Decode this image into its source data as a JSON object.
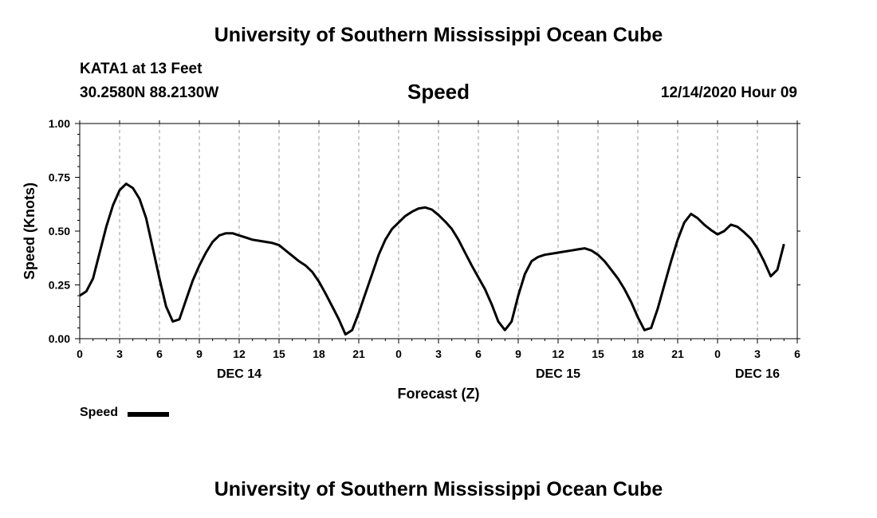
{
  "header": {
    "title_top": "University of Southern Mississippi Ocean Cube",
    "station": "KATA1 at 13 Feet",
    "coords": "30.2580N 88.2130W",
    "variable": "Speed",
    "datetime": "12/14/2020 Hour 09",
    "title_bottom": "University of Southern Mississippi Ocean Cube"
  },
  "legend": {
    "label": "Speed",
    "color": "#000000"
  },
  "chart_data": {
    "type": "line",
    "title": "Speed",
    "xlabel": "Forecast (Z)",
    "ylabel": "Speed (Knots)",
    "x_unit": "hours from 12/14 00Z",
    "xlim": [
      0,
      54
    ],
    "ylim": [
      0,
      1.0
    ],
    "y_ticks": [
      "0.00",
      "0.25",
      "0.50",
      "0.75",
      "1.00"
    ],
    "x_tick_labels": [
      "0",
      "3",
      "6",
      "9",
      "12",
      "15",
      "18",
      "21",
      "0",
      "3",
      "6",
      "9",
      "12",
      "15",
      "18",
      "21",
      "0",
      "3",
      "6"
    ],
    "date_labels": [
      {
        "at_hour": 12,
        "label": "DEC 14"
      },
      {
        "at_hour": 36,
        "label": "DEC 15"
      },
      {
        "at_hour": 51,
        "label": "DEC 16"
      }
    ],
    "series": [
      {
        "name": "Speed",
        "color": "#000000",
        "points": [
          [
            0,
            0.2
          ],
          [
            0.5,
            0.22
          ],
          [
            1,
            0.28
          ],
          [
            1.5,
            0.4
          ],
          [
            2,
            0.52
          ],
          [
            2.5,
            0.62
          ],
          [
            3,
            0.69
          ],
          [
            3.5,
            0.72
          ],
          [
            4,
            0.7
          ],
          [
            4.5,
            0.65
          ],
          [
            5,
            0.56
          ],
          [
            5.5,
            0.42
          ],
          [
            6,
            0.28
          ],
          [
            6.5,
            0.15
          ],
          [
            7,
            0.08
          ],
          [
            7.5,
            0.09
          ],
          [
            8,
            0.18
          ],
          [
            8.5,
            0.27
          ],
          [
            9,
            0.34
          ],
          [
            9.5,
            0.4
          ],
          [
            10,
            0.45
          ],
          [
            10.5,
            0.48
          ],
          [
            11,
            0.49
          ],
          [
            11.5,
            0.49
          ],
          [
            12,
            0.48
          ],
          [
            12.5,
            0.47
          ],
          [
            13,
            0.46
          ],
          [
            13.5,
            0.455
          ],
          [
            14,
            0.45
          ],
          [
            14.5,
            0.445
          ],
          [
            15,
            0.435
          ],
          [
            15.5,
            0.41
          ],
          [
            16,
            0.385
          ],
          [
            16.5,
            0.36
          ],
          [
            17,
            0.34
          ],
          [
            17.5,
            0.31
          ],
          [
            18,
            0.265
          ],
          [
            18.5,
            0.21
          ],
          [
            19,
            0.15
          ],
          [
            19.5,
            0.09
          ],
          [
            20,
            0.02
          ],
          [
            20.5,
            0.04
          ],
          [
            21,
            0.12
          ],
          [
            21.5,
            0.21
          ],
          [
            22,
            0.3
          ],
          [
            22.5,
            0.39
          ],
          [
            23,
            0.46
          ],
          [
            23.5,
            0.51
          ],
          [
            24,
            0.54
          ],
          [
            24.5,
            0.57
          ],
          [
            25,
            0.59
          ],
          [
            25.5,
            0.605
          ],
          [
            26,
            0.61
          ],
          [
            26.5,
            0.6
          ],
          [
            27,
            0.575
          ],
          [
            27.5,
            0.545
          ],
          [
            28,
            0.51
          ],
          [
            28.5,
            0.46
          ],
          [
            29,
            0.4
          ],
          [
            29.5,
            0.34
          ],
          [
            30,
            0.285
          ],
          [
            30.5,
            0.23
          ],
          [
            31,
            0.16
          ],
          [
            31.5,
            0.08
          ],
          [
            32,
            0.04
          ],
          [
            32.5,
            0.08
          ],
          [
            33,
            0.2
          ],
          [
            33.5,
            0.3
          ],
          [
            34,
            0.36
          ],
          [
            34.5,
            0.38
          ],
          [
            35,
            0.39
          ],
          [
            35.5,
            0.395
          ],
          [
            36,
            0.4
          ],
          [
            36.5,
            0.405
          ],
          [
            37,
            0.41
          ],
          [
            37.5,
            0.415
          ],
          [
            38,
            0.42
          ],
          [
            38.5,
            0.41
          ],
          [
            39,
            0.39
          ],
          [
            39.5,
            0.36
          ],
          [
            40,
            0.32
          ],
          [
            40.5,
            0.28
          ],
          [
            41,
            0.23
          ],
          [
            41.5,
            0.17
          ],
          [
            42,
            0.1
          ],
          [
            42.5,
            0.04
          ],
          [
            43,
            0.05
          ],
          [
            43.5,
            0.14
          ],
          [
            44,
            0.25
          ],
          [
            44.5,
            0.36
          ],
          [
            45,
            0.46
          ],
          [
            45.5,
            0.54
          ],
          [
            46,
            0.58
          ],
          [
            46.5,
            0.56
          ],
          [
            47,
            0.53
          ],
          [
            47.5,
            0.505
          ],
          [
            48,
            0.485
          ],
          [
            48.5,
            0.5
          ],
          [
            49,
            0.53
          ],
          [
            49.5,
            0.52
          ],
          [
            50,
            0.495
          ],
          [
            50.5,
            0.465
          ],
          [
            51,
            0.42
          ],
          [
            51.5,
            0.36
          ],
          [
            52,
            0.29
          ],
          [
            52.5,
            0.32
          ],
          [
            53,
            0.44
          ]
        ]
      }
    ],
    "grid": "dashed vertical lines at each 3-hour tick",
    "legend_position": "bottom-left"
  }
}
